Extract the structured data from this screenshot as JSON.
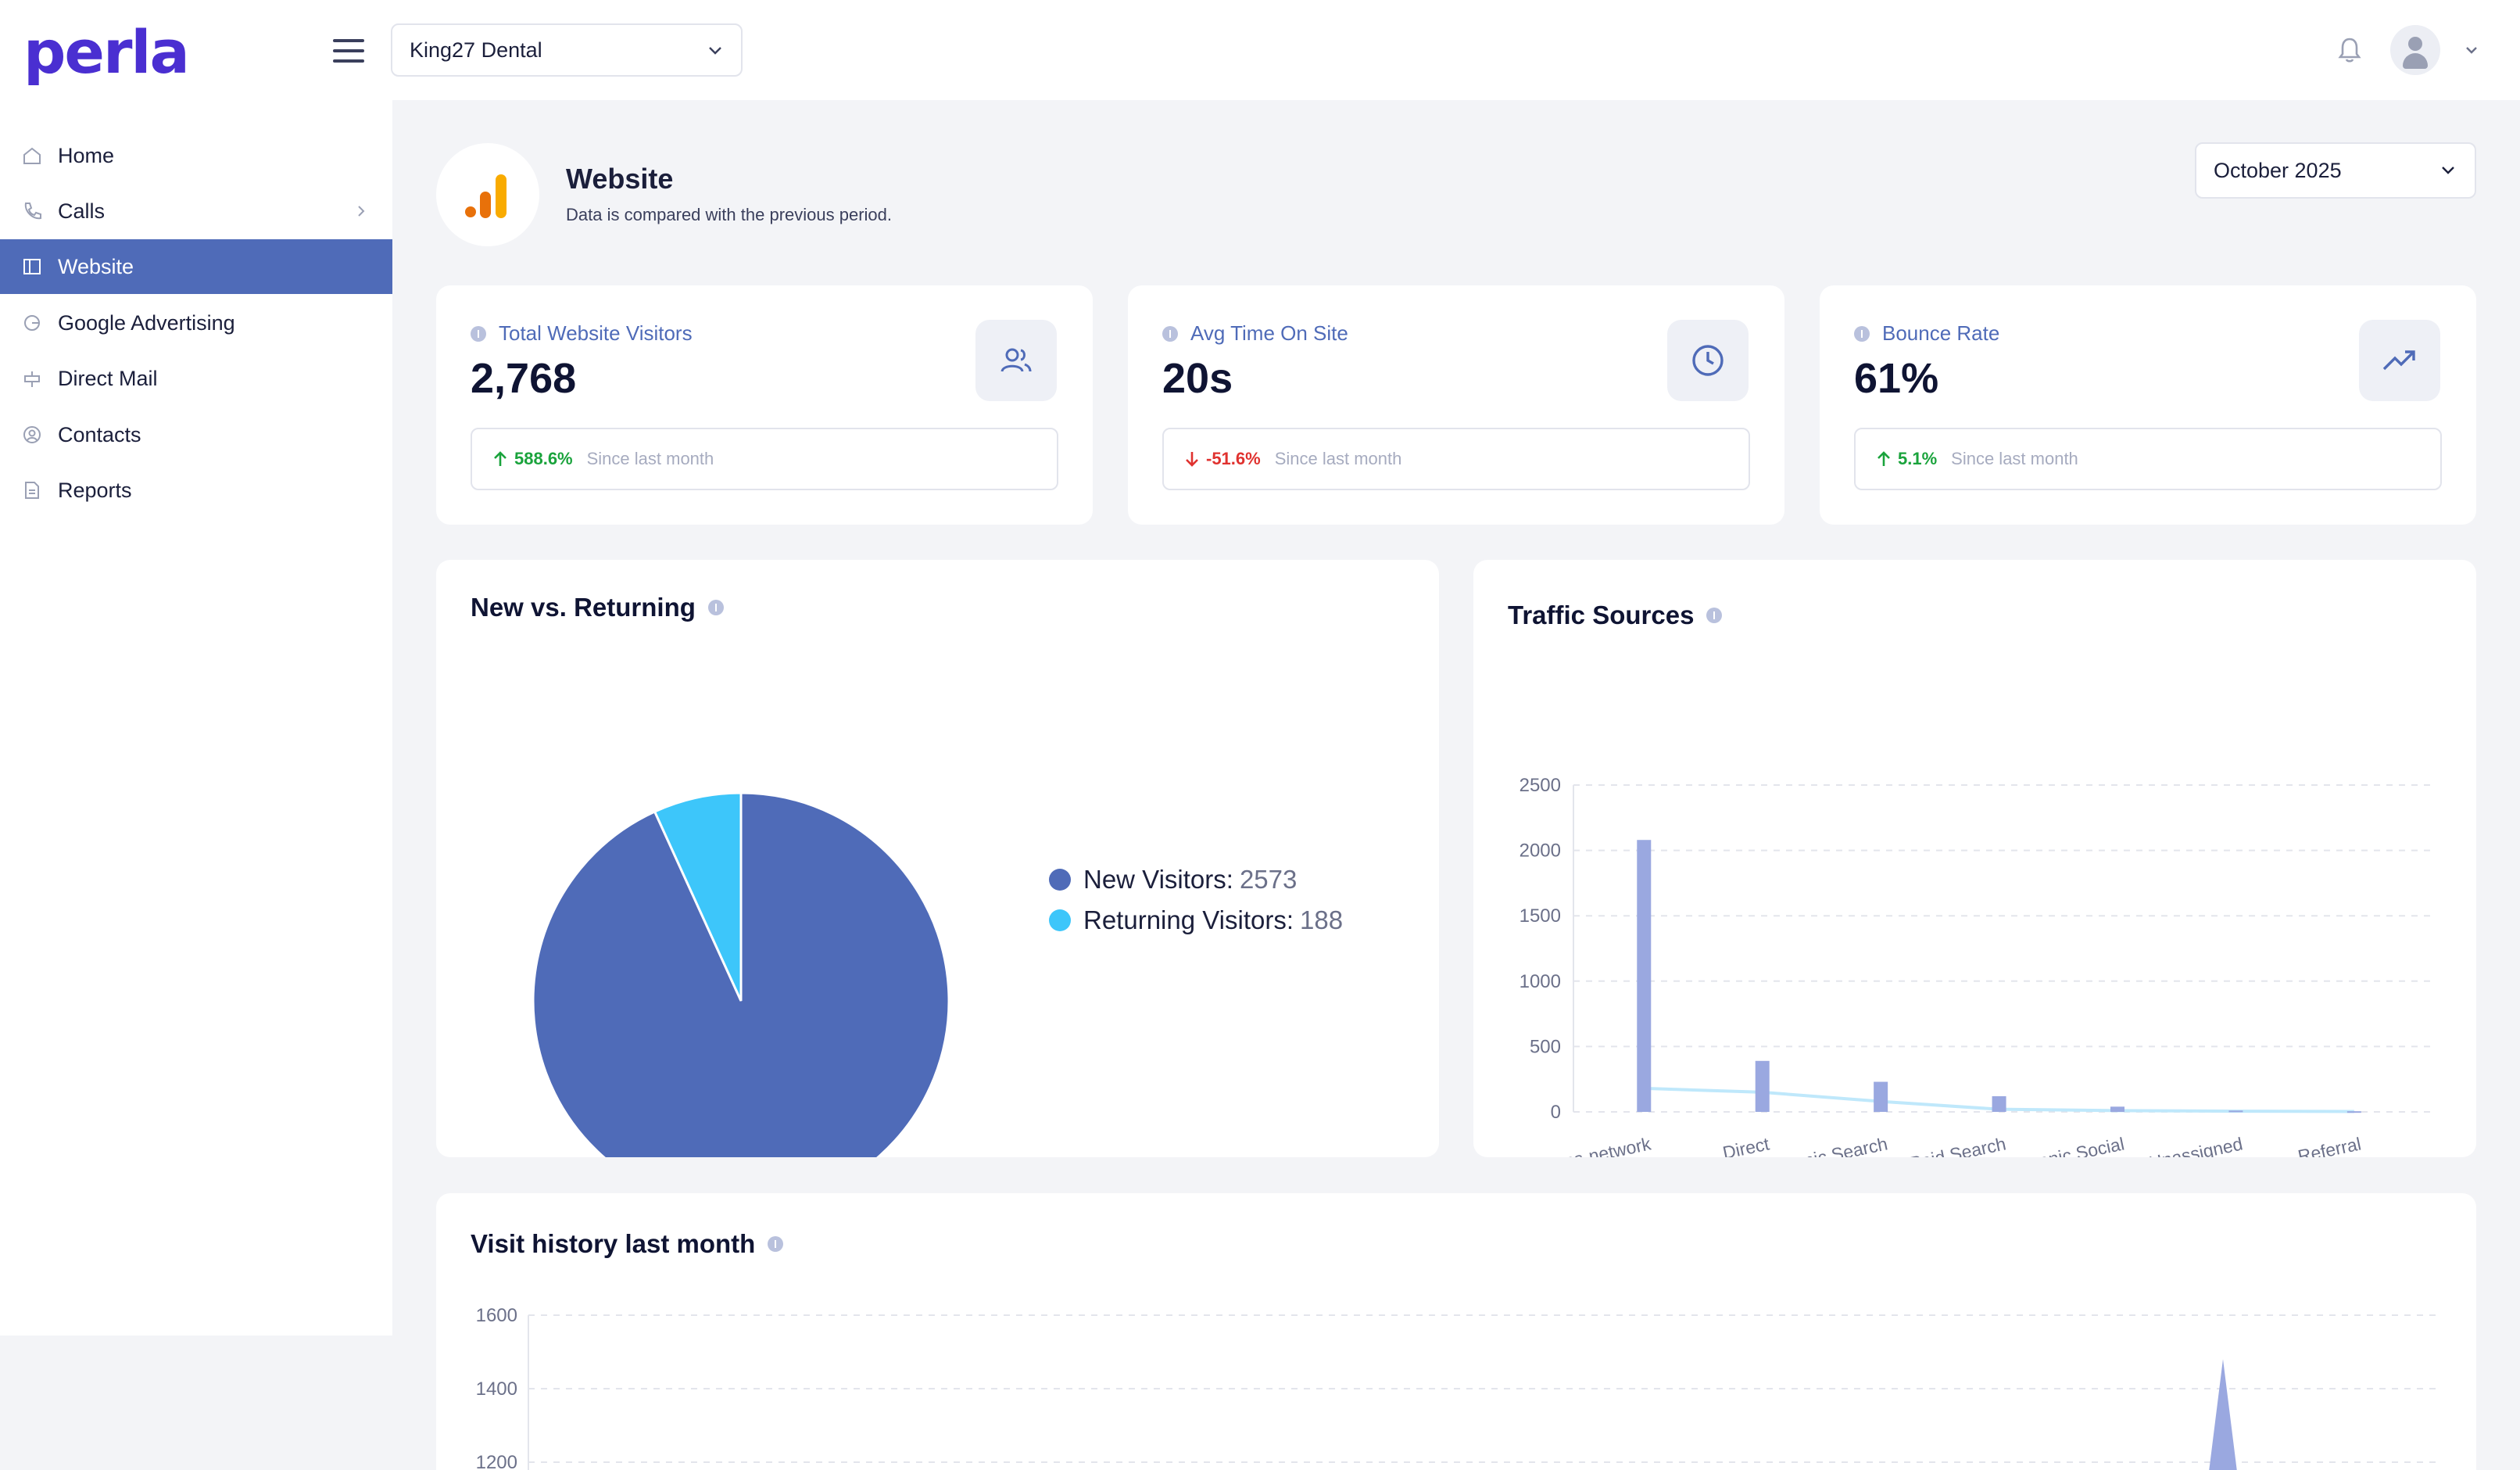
{
  "app": {
    "logo": "perla",
    "practice": "King27 Dental"
  },
  "sidebar": {
    "items": [
      {
        "label": "Home",
        "icon": "home-icon"
      },
      {
        "label": "Calls",
        "icon": "phone-icon"
      },
      {
        "label": "Website",
        "icon": "layout-icon",
        "active": true
      },
      {
        "label": "Google Advertising",
        "icon": "google-icon"
      },
      {
        "label": "Direct Mail",
        "icon": "mailbox-icon"
      },
      {
        "label": "Contacts",
        "icon": "contacts-icon"
      },
      {
        "label": "Reports",
        "icon": "reports-icon"
      }
    ]
  },
  "header": {
    "title": "Website",
    "subtitle": "Data is compared with the previous period.",
    "period": "October 2025"
  },
  "kpis": [
    {
      "title": "Total Website Visitors",
      "value": "2,768",
      "delta": "588.6%",
      "direction": "up",
      "since": "Since last month",
      "icon": "users-icon"
    },
    {
      "title": "Avg Time On Site",
      "value": "20s",
      "delta": "-51.6%",
      "direction": "down",
      "since": "Since last month",
      "icon": "clock-icon"
    },
    {
      "title": "Bounce Rate",
      "value": "61%",
      "delta": "5.1%",
      "direction": "up",
      "since": "Since last month",
      "icon": "trend-up-icon"
    }
  ],
  "colors": {
    "accent": "#4f6bb8",
    "new_visitors": "#4f6bb8",
    "returning_visitors": "#3dc6fa",
    "bars": "#9aa8e0",
    "line": "#bfe8fb",
    "up": "#1aa33c",
    "down": "#e0322f"
  },
  "chart_data": [
    {
      "type": "pie",
      "title": "New vs. Returning",
      "labels": [
        "New Visitors:",
        "Returning Visitors:"
      ],
      "values": [
        2573,
        188
      ]
    },
    {
      "type": "bar",
      "title": "Traffic Sources",
      "categories": [
        "Cross-network",
        "Direct",
        "Organic Search",
        "Paid Search",
        "Organic Social",
        "Unassigned",
        "Referral"
      ],
      "series": [
        {
          "values": [
            2080,
            390,
            230,
            120,
            40,
            10,
            5
          ]
        },
        {
          "values": [
            180,
            150,
            80,
            20,
            10,
            5,
            3
          ]
        }
      ],
      "ylim": [
        0,
        2500
      ],
      "yticks": [
        "0",
        "500",
        "1000",
        "1500",
        "2000",
        "2500"
      ],
      "grid": true
    },
    {
      "type": "area",
      "title": "Visit history last month",
      "yticks": [
        "1200",
        "1400",
        "1600"
      ],
      "ylim": [
        1200,
        1600
      ],
      "grid": true
    }
  ]
}
